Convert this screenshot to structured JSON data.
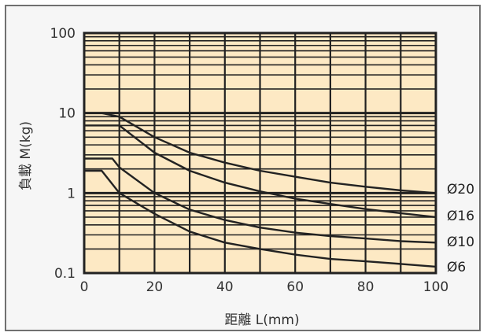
{
  "chart_data": {
    "type": "line",
    "xlabel": "距離  L(mm)",
    "ylabel": "負載  M(kg)",
    "xlim": [
      0,
      100
    ],
    "ylim": [
      0.1,
      100
    ],
    "y_scale": "log",
    "x_ticks": [
      {
        "value": 0,
        "label": "0"
      },
      {
        "value": 20,
        "label": "20"
      },
      {
        "value": 40,
        "label": "40"
      },
      {
        "value": 60,
        "label": "60"
      },
      {
        "value": 80,
        "label": "80"
      },
      {
        "value": 100,
        "label": "100"
      }
    ],
    "y_ticks": [
      {
        "value": 100,
        "label": "100"
      },
      {
        "value": 10,
        "label": "10"
      },
      {
        "value": 1,
        "label": "1"
      },
      {
        "value": 0.1,
        "label": "0.1"
      }
    ],
    "grid": true,
    "background_color": "#fde9c4",
    "line_color": "#222222",
    "series": [
      {
        "name": "Ø20",
        "x": [
          0,
          5,
          10,
          20,
          30,
          40,
          50,
          60,
          70,
          80,
          90,
          100
        ],
        "y": [
          10,
          10,
          9,
          5,
          3.2,
          2.4,
          1.9,
          1.6,
          1.35,
          1.2,
          1.08,
          1.0
        ]
      },
      {
        "name": "Ø16",
        "x": [
          0,
          10,
          20,
          30,
          40,
          50,
          60,
          70,
          80,
          90,
          100
        ],
        "y": [
          7,
          7,
          3.2,
          1.9,
          1.35,
          1.05,
          0.85,
          0.73,
          0.63,
          0.56,
          0.5
        ]
      },
      {
        "name": "Ø10",
        "x": [
          0,
          8,
          10,
          20,
          30,
          40,
          50,
          60,
          70,
          80,
          90,
          100
        ],
        "y": [
          2.7,
          2.7,
          2.1,
          1.0,
          0.62,
          0.46,
          0.37,
          0.32,
          0.29,
          0.27,
          0.25,
          0.24
        ]
      },
      {
        "name": "Ø6",
        "x": [
          0,
          5,
          10,
          20,
          30,
          40,
          50,
          60,
          70,
          80,
          90,
          100
        ],
        "y": [
          1.9,
          1.9,
          1.0,
          0.55,
          0.33,
          0.24,
          0.2,
          0.17,
          0.15,
          0.14,
          0.13,
          0.12
        ]
      }
    ]
  }
}
